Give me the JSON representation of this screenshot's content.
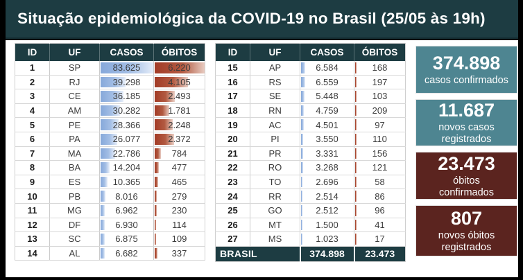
{
  "title": "Situação epidemiológica da COVID-19 no Brasil (25/05 às 19h)",
  "columns": [
    "ID",
    "UF",
    "CASOS",
    "ÓBITOS"
  ],
  "bar_scale": {
    "casos_max": 83625,
    "obitos_max": 6220
  },
  "tables": [
    {
      "rows": [
        {
          "id": "1",
          "uf": "SP",
          "casos": "83.625",
          "obitos": "6.220"
        },
        {
          "id": "2",
          "uf": "RJ",
          "casos": "39.298",
          "obitos": "4.105"
        },
        {
          "id": "3",
          "uf": "CE",
          "casos": "36.185",
          "obitos": "2.493"
        },
        {
          "id": "4",
          "uf": "AM",
          "casos": "30.282",
          "obitos": "1.781"
        },
        {
          "id": "5",
          "uf": "PE",
          "casos": "28.366",
          "obitos": "2.248"
        },
        {
          "id": "6",
          "uf": "PA",
          "casos": "26.077",
          "obitos": "2.372"
        },
        {
          "id": "7",
          "uf": "MA",
          "casos": "22.786",
          "obitos": "784"
        },
        {
          "id": "8",
          "uf": "BA",
          "casos": "14.204",
          "obitos": "477"
        },
        {
          "id": "9",
          "uf": "ES",
          "casos": "10.365",
          "obitos": "465"
        },
        {
          "id": "10",
          "uf": "PB",
          "casos": "8.016",
          "obitos": "279"
        },
        {
          "id": "11",
          "uf": "MG",
          "casos": "6.962",
          "obitos": "230"
        },
        {
          "id": "12",
          "uf": "DF",
          "casos": "6.930",
          "obitos": "114"
        },
        {
          "id": "13",
          "uf": "SC",
          "casos": "6.875",
          "obitos": "109"
        },
        {
          "id": "14",
          "uf": "AL",
          "casos": "6.682",
          "obitos": "337"
        }
      ]
    },
    {
      "rows": [
        {
          "id": "15",
          "uf": "AP",
          "casos": "6.584",
          "obitos": "168"
        },
        {
          "id": "16",
          "uf": "RS",
          "casos": "6.559",
          "obitos": "197"
        },
        {
          "id": "17",
          "uf": "SE",
          "casos": "5.448",
          "obitos": "103"
        },
        {
          "id": "18",
          "uf": "RN",
          "casos": "4.759",
          "obitos": "209"
        },
        {
          "id": "19",
          "uf": "AC",
          "casos": "4.501",
          "obitos": "97"
        },
        {
          "id": "20",
          "uf": "PI",
          "casos": "3.550",
          "obitos": "110"
        },
        {
          "id": "21",
          "uf": "PR",
          "casos": "3.331",
          "obitos": "156"
        },
        {
          "id": "22",
          "uf": "RO",
          "casos": "3.268",
          "obitos": "121"
        },
        {
          "id": "23",
          "uf": "TO",
          "casos": "2.696",
          "obitos": "58"
        },
        {
          "id": "24",
          "uf": "RR",
          "casos": "2.514",
          "obitos": "86"
        },
        {
          "id": "25",
          "uf": "GO",
          "casos": "2.512",
          "obitos": "96"
        },
        {
          "id": "26",
          "uf": "MT",
          "casos": "1.500",
          "obitos": "41"
        },
        {
          "id": "27",
          "uf": "MS",
          "casos": "1.023",
          "obitos": "17"
        }
      ],
      "total": {
        "label": "BRASIL",
        "casos": "374.898",
        "obitos": "23.473"
      }
    }
  ],
  "summary": [
    {
      "value": "374.898",
      "label": "casos confirmados"
    },
    {
      "value": "11.687",
      "label": "novos casos\nregistrados"
    },
    {
      "value": "23.473",
      "label": "óbitos\nconfirmados"
    },
    {
      "value": "807",
      "label": "novos óbitos\nregistrados"
    }
  ],
  "colors": {
    "title_bg": "#1D3C42",
    "header_bg": "#1D3C42",
    "teal_box": "#4E8591",
    "maroon_box": "#5B241F",
    "casos_bar_blue": "#86A8DA",
    "obitos_bar_red": "#A23B26"
  },
  "chart_data": {
    "type": "table",
    "title": "Situação epidemiológica da COVID-19 no Brasil (25/05 às 19h)",
    "columns": [
      "ID",
      "UF",
      "CASOS",
      "ÓBITOS"
    ],
    "rows": [
      [
        1,
        "SP",
        83625,
        6220
      ],
      [
        2,
        "RJ",
        39298,
        4105
      ],
      [
        3,
        "CE",
        36185,
        2493
      ],
      [
        4,
        "AM",
        30282,
        1781
      ],
      [
        5,
        "PE",
        28366,
        2248
      ],
      [
        6,
        "PA",
        26077,
        2372
      ],
      [
        7,
        "MA",
        22786,
        784
      ],
      [
        8,
        "BA",
        14204,
        477
      ],
      [
        9,
        "ES",
        10365,
        465
      ],
      [
        10,
        "PB",
        8016,
        279
      ],
      [
        11,
        "MG",
        6962,
        230
      ],
      [
        12,
        "DF",
        6930,
        114
      ],
      [
        13,
        "SC",
        6875,
        109
      ],
      [
        14,
        "AL",
        6682,
        337
      ],
      [
        15,
        "AP",
        6584,
        168
      ],
      [
        16,
        "RS",
        6559,
        197
      ],
      [
        17,
        "SE",
        5448,
        103
      ],
      [
        18,
        "RN",
        4759,
        209
      ],
      [
        19,
        "AC",
        4501,
        97
      ],
      [
        20,
        "PI",
        3550,
        110
      ],
      [
        21,
        "PR",
        3331,
        156
      ],
      [
        22,
        "RO",
        3268,
        121
      ],
      [
        23,
        "TO",
        2696,
        58
      ],
      [
        24,
        "RR",
        2514,
        86
      ],
      [
        25,
        "GO",
        2512,
        96
      ],
      [
        26,
        "MT",
        1500,
        41
      ],
      [
        27,
        "MS",
        1023,
        17
      ]
    ],
    "total_row": {
      "label": "BRASIL",
      "casos": 374898,
      "obitos": 23473
    },
    "summary_stats": [
      {
        "value": 374898,
        "label": "casos confirmados"
      },
      {
        "value": 11687,
        "label": "novos casos registrados"
      },
      {
        "value": 23473,
        "label": "óbitos confirmados"
      },
      {
        "value": 807,
        "label": "novos óbitos registrados"
      }
    ],
    "bar_columns": {
      "CASOS": {
        "style": "data-bar",
        "color": "#86A8DA",
        "max": 83625
      },
      "ÓBITOS": {
        "style": "data-bar",
        "color": "#A23B26",
        "max": 6220
      }
    }
  }
}
